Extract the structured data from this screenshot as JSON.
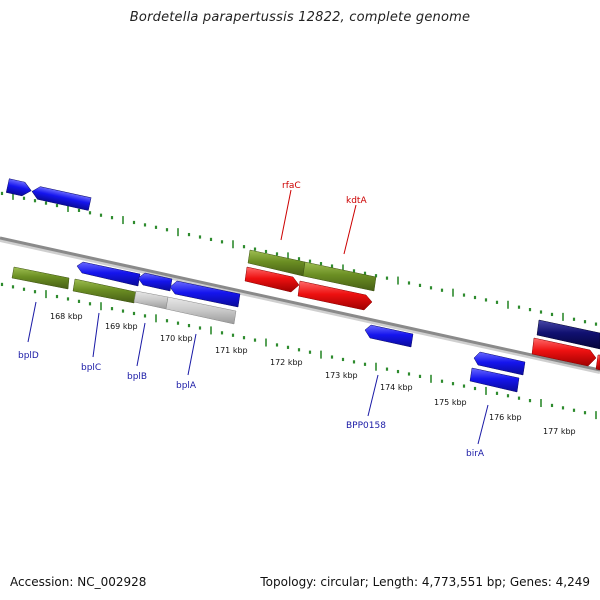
{
  "title": "Bordetella parapertussis 12822, complete genome",
  "footer": {
    "accession": "Accession: NC_002928",
    "summary": "Topology: circular; Length: 4,773,551 bp; Genes: 4,249"
  },
  "colors": {
    "backbone": "#8a8a8a",
    "tick": "#2e8b2e",
    "label_forward": "#cc0000",
    "label_reverse": "#1a1aa6",
    "blue": "#1515ee",
    "green": "#6b8e23",
    "gray": "#c8c8c8",
    "red": "#ee1111",
    "navy": "#101070"
  },
  "scale_labels": [
    "168 kbp",
    "169 kbp",
    "170 kbp",
    "171 kbp",
    "172 kbp",
    "173 kbp",
    "174 kbp",
    "175 kbp",
    "176 kbp",
    "177 kbp"
  ],
  "gene_labels": {
    "forward": [
      "rfaC",
      "kdtA"
    ],
    "reverse": [
      "bplD",
      "bplC",
      "bplB",
      "bplA",
      "BPP0158",
      "birA"
    ]
  }
}
